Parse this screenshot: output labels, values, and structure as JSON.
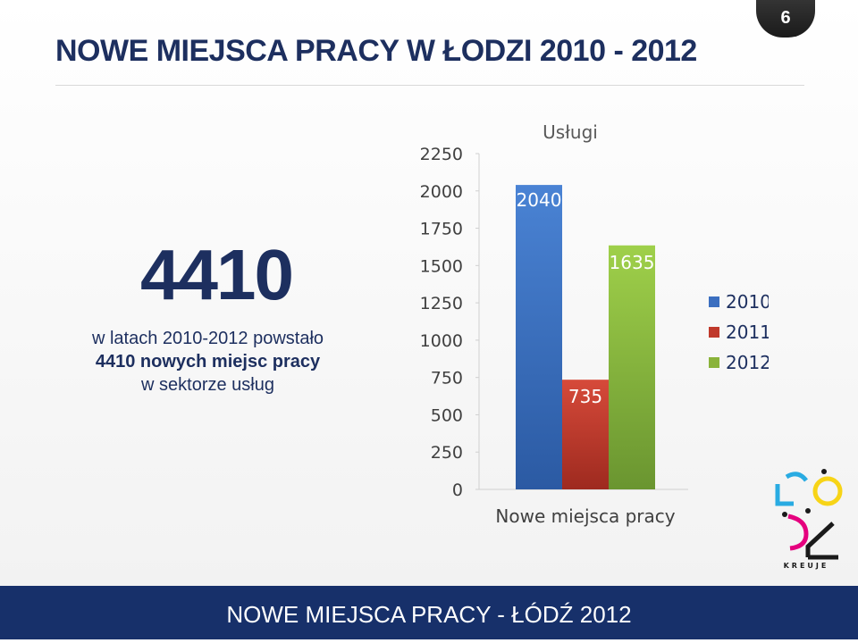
{
  "header": {
    "title": "NOWE MIEJSCA PRACY W ŁODZI 2010 - 2012",
    "page_number": "6"
  },
  "summary": {
    "big_number": "4410",
    "line1": "w latach 2010-2012 powstało",
    "line2": "4410 nowych miejsc pracy",
    "line3": "w sektorze usług"
  },
  "footer": {
    "text": "NOWE MIEJSCA PRACY - ŁÓDŹ 2012"
  },
  "logo": {
    "text": "KREUJE"
  },
  "colors": {
    "primary": "#1d2f5f",
    "footer": "#17306a",
    "bar2010": "#3b6fc0",
    "bar2011": "#c0392b",
    "bar2012": "#8ab33a"
  },
  "chart_data": {
    "type": "bar",
    "title": "Usługi",
    "xlabel": "Nowe miejsca pracy",
    "ylabel": "",
    "ylim": [
      0,
      2250
    ],
    "yticks": [
      0,
      250,
      500,
      750,
      1000,
      1250,
      1500,
      1750,
      2000,
      2250
    ],
    "categories": [
      "Nowe miejsca pracy"
    ],
    "series": [
      {
        "name": "2010",
        "values": [
          2040
        ],
        "color": "#3b6fc0"
      },
      {
        "name": "2011",
        "values": [
          735
        ],
        "color": "#c0392b"
      },
      {
        "name": "2012",
        "values": [
          1635
        ],
        "color": "#8ab33a"
      }
    ],
    "grid": false,
    "legend": "right"
  }
}
